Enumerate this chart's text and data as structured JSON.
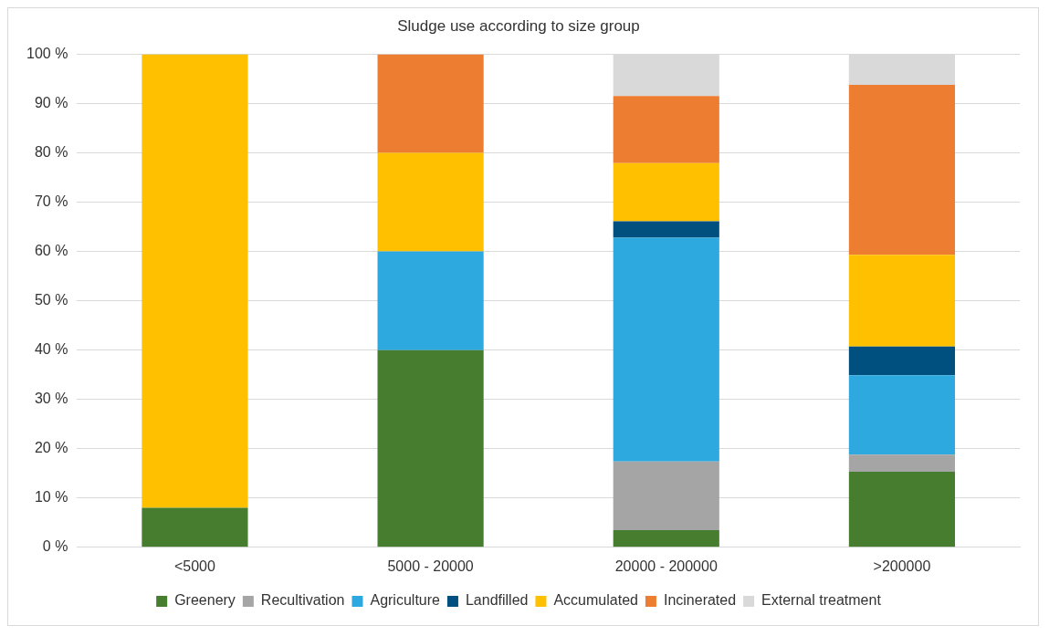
{
  "chart_data": {
    "type": "bar",
    "title": "Sludge use according to size group",
    "categories": [
      "<5000",
      "5000 - 20000",
      "20000 - 200000",
      ">200000"
    ],
    "stacked": true,
    "series": [
      {
        "name": "Greenery",
        "color": "#467d2f",
        "values": [
          8,
          40,
          3.5,
          15.3
        ]
      },
      {
        "name": "Recultivation",
        "color": "#a5a5a5",
        "values": [
          0,
          0,
          13.9,
          3.5
        ]
      },
      {
        "name": "Agriculture",
        "color": "#2ea9e0",
        "values": [
          0,
          20,
          45.4,
          16.1
        ]
      },
      {
        "name": "Landfilled",
        "color": "#00507f",
        "values": [
          0,
          0,
          3.3,
          5.8
        ]
      },
      {
        "name": "Accumulated",
        "color": "#ffc000",
        "values": [
          92,
          20,
          11.8,
          18.6
        ]
      },
      {
        "name": "Incinerated",
        "color": "#ed7d31",
        "values": [
          0,
          20,
          13.6,
          34.5
        ]
      },
      {
        "name": "External treatment",
        "color": "#d9d9d9",
        "values": [
          0,
          0,
          8.5,
          6.2
        ]
      }
    ],
    "ylim": [
      0,
      100
    ],
    "yticks": [
      {
        "value": 0,
        "label": "0 %"
      },
      {
        "value": 10,
        "label": "10 %"
      },
      {
        "value": 20,
        "label": "20 %"
      },
      {
        "value": 30,
        "label": "30 %"
      },
      {
        "value": 40,
        "label": "40 %"
      },
      {
        "value": 50,
        "label": "50 %"
      },
      {
        "value": 60,
        "label": "60 %"
      },
      {
        "value": 70,
        "label": "70 %"
      },
      {
        "value": 80,
        "label": "80 %"
      },
      {
        "value": 90,
        "label": "90 %"
      },
      {
        "value": 100,
        "label": "100 %"
      }
    ],
    "grid": "y",
    "legend": "bottom"
  }
}
